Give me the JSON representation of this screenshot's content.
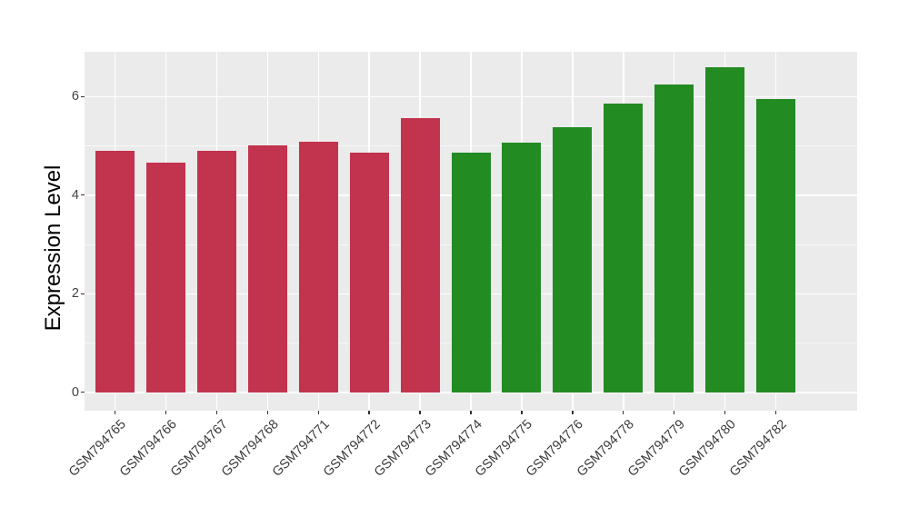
{
  "chart_data": {
    "type": "bar",
    "title": "",
    "xlabel": "",
    "ylabel": "Expression Level",
    "categories": [
      "GSM794765",
      "GSM794766",
      "GSM794767",
      "GSM794768",
      "GSM794771",
      "GSM794772",
      "GSM794773",
      "GSM794774",
      "GSM794775",
      "GSM794776",
      "GSM794778",
      "GSM794779",
      "GSM794780",
      "GSM794782"
    ],
    "values": [
      4.89,
      4.66,
      4.9,
      5.0,
      5.09,
      4.87,
      5.56,
      4.86,
      5.06,
      5.38,
      5.86,
      6.24,
      6.59,
      5.94
    ],
    "bar_colors": [
      "#c2334e",
      "#c2334e",
      "#c2334e",
      "#c2334e",
      "#c2334e",
      "#c2334e",
      "#c2334e",
      "#228b22",
      "#228b22",
      "#228b22",
      "#228b22",
      "#228b22",
      "#228b22",
      "#228b22"
    ],
    "groups": [
      {
        "color": "#c2334e",
        "first_category": "GSM794765",
        "last_category": "GSM794773",
        "count": 7
      },
      {
        "color": "#228b22",
        "first_category": "GSM794774",
        "last_category": "GSM794782",
        "count": 7
      }
    ],
    "y_ticks": [
      0,
      2,
      4,
      6
    ],
    "y_minor_ticks": [
      1,
      3,
      5
    ],
    "ylim": [
      -0.37,
      6.91
    ],
    "grid": true,
    "legend_position": "none",
    "panel_background": "#ebebeb",
    "grid_color": "#ffffff",
    "tick_color": "#333333",
    "axis_text_color": "#424242"
  }
}
